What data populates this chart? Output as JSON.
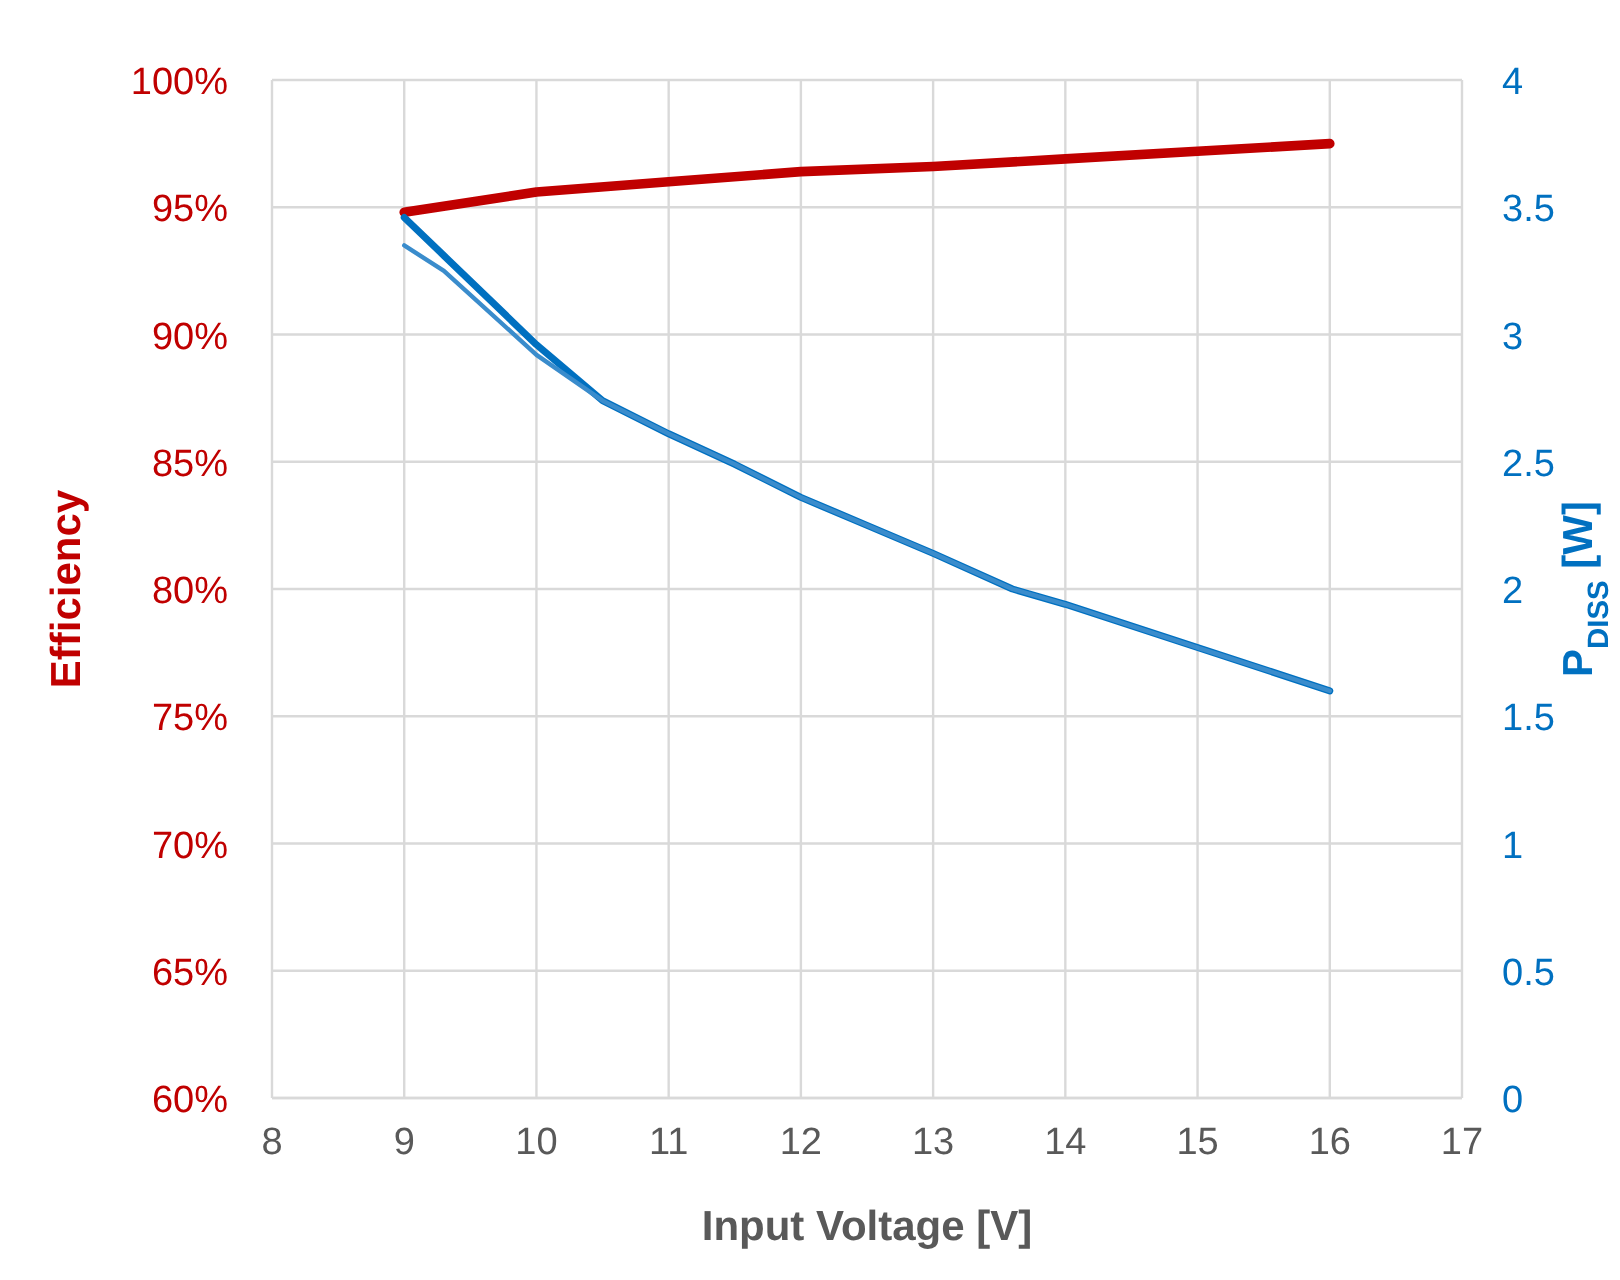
{
  "chart_data": {
    "type": "line",
    "xlabel": "Input Voltage [V]",
    "ylabel": "Efficiency",
    "y2label": "P$_{DISS}$ [W]",
    "x": [
      9,
      9.3,
      10,
      10.5,
      11,
      11.5,
      12,
      12.5,
      13,
      13.6,
      14,
      15,
      16
    ],
    "series": [
      {
        "color": "#c00000",
        "x": [
          9,
          10,
          11,
          12,
          13,
          14,
          15,
          16
        ],
        "values": [
          94.8,
          95.6,
          96.0,
          96.4,
          96.6,
          96.9,
          97.2,
          97.5
        ]
      },
      {
        "color": "#0070c0",
        "axis": "y2",
        "values": [
          3.46,
          3.31,
          2.96,
          2.74,
          2.61,
          2.49,
          2.36,
          2.25,
          2.14,
          2.0,
          1.94,
          1.77,
          1.6
        ]
      },
      {
        "color": "#3a8ccc",
        "axis": "y2",
        "values": [
          3.35,
          3.25,
          2.92,
          2.74,
          2.61,
          2.49,
          2.36,
          2.25,
          2.14,
          2.0,
          1.94,
          1.77,
          1.6
        ]
      }
    ],
    "xlim": [
      8,
      17
    ],
    "xticks": [
      8,
      9,
      10,
      11,
      12,
      13,
      14,
      15,
      16,
      17
    ],
    "ylim": [
      60,
      100
    ],
    "yticks": [
      {
        "value": 60,
        "label": "60%"
      },
      {
        "value": 65,
        "label": "65%"
      },
      {
        "value": 70,
        "label": "70%"
      },
      {
        "value": 75,
        "label": "75%"
      },
      {
        "value": 80,
        "label": "80%"
      },
      {
        "value": 85,
        "label": "85%"
      },
      {
        "value": 90,
        "label": "90%"
      },
      {
        "value": 95,
        "label": "95%"
      },
      {
        "value": 100,
        "label": "100%"
      }
    ],
    "y2lim": [
      0,
      4
    ],
    "y2ticks": [
      0,
      0.5,
      1,
      1.5,
      2,
      2.5,
      3,
      3.5,
      4
    ],
    "grid": true,
    "marker": "none",
    "line_style": "solid"
  }
}
